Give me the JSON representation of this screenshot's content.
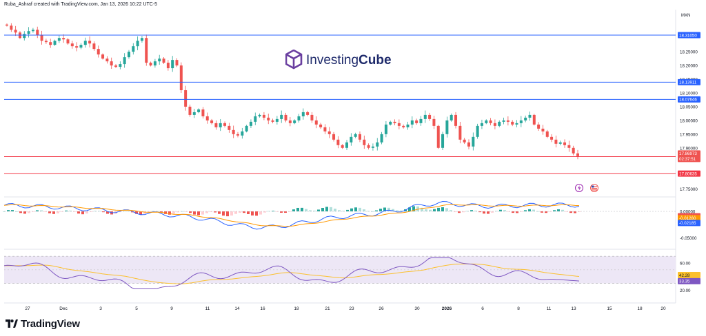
{
  "header": {
    "created_by": "Ruba_Ashraf created with TradingView.com, Jan 13, 2026 10:22 UTC-5"
  },
  "symbol_label": "MXN",
  "watermark": {
    "brand_left": "Investing",
    "brand_right": "Cube",
    "brand_color_left": "#1e2a6b",
    "brand_color_right": "#1e2a6b",
    "logo_color": "#6a3fa0"
  },
  "footer": {
    "tradingview": "TradingView"
  },
  "colors": {
    "up": "#26a69a",
    "down": "#ef5350",
    "blue_line": "#2962ff",
    "red_line": "#f23645",
    "macd": "#2962ff",
    "signal": "#ff9800",
    "rsi": "#7e57c2",
    "rsi_ma": "#fbc02d"
  },
  "chart_data": [
    {
      "type": "candlestick",
      "y_ticks": [
        "18.25000",
        "18.20000",
        "18.15000",
        "18.10000",
        "18.05000",
        "18.00000",
        "17.95000",
        "17.90000",
        "17.75000"
      ],
      "ylim": [
        17.72,
        18.36
      ],
      "x_ticks": [
        "27",
        "Dec",
        "3",
        "5",
        "9",
        "11",
        "14",
        "16",
        "18",
        "21",
        "23",
        "26",
        "30",
        "2026",
        "6",
        "8",
        "11",
        "13",
        "15",
        "18",
        "20"
      ],
      "close_path": [
        18.345,
        18.33,
        18.32,
        18.3,
        18.315,
        18.325,
        18.33,
        18.31,
        18.29,
        18.285,
        18.275,
        18.29,
        18.3,
        18.295,
        18.28,
        18.27,
        18.265,
        18.275,
        18.29,
        18.28,
        18.26,
        18.24,
        18.225,
        18.215,
        18.2,
        18.195,
        18.205,
        18.23,
        18.25,
        18.27,
        18.29,
        18.3,
        18.21,
        18.2,
        18.215,
        18.225,
        18.21,
        18.19,
        18.22,
        18.2,
        18.11,
        18.05,
        18.02,
        18.03,
        18.04,
        18.015,
        18.0,
        17.99,
        17.975,
        17.99,
        17.98,
        17.965,
        17.95,
        17.945,
        17.96,
        17.98,
        17.995,
        18.015,
        18.02,
        18.01,
        18.0,
        17.995,
        18.005,
        18.02,
        18.0,
        17.99,
        18.0,
        18.015,
        18.03,
        18.02,
        18.0,
        17.985,
        17.975,
        17.96,
        17.95,
        17.93,
        17.91,
        17.9,
        17.92,
        17.94,
        17.95,
        17.93,
        17.91,
        17.9,
        17.905,
        17.92,
        17.95,
        17.985,
        17.995,
        17.99,
        17.98,
        17.975,
        17.985,
        18.0,
        17.99,
        18.005,
        18.02,
        18.005,
        17.98,
        17.9,
        17.95,
        18.0,
        18.02,
        17.98,
        17.93,
        17.92,
        17.905,
        17.94,
        17.98,
        17.99,
        18.0,
        17.99,
        17.98,
        17.995,
        18.0,
        17.995,
        17.985,
        17.99,
        18.0,
        18.01,
        18.02,
        17.985,
        17.97,
        17.96,
        17.94,
        17.93,
        17.915,
        17.92,
        17.91,
        17.9,
        17.88,
        17.87
      ],
      "levels_blue": [
        {
          "label": "18.31050",
          "value": 18.3105
        },
        {
          "label": "18.13911",
          "value": 18.13911
        },
        {
          "label": "18.07646",
          "value": 18.07646
        }
      ],
      "levels_red": [
        {
          "label": "17.86814",
          "value": 17.86814
        },
        {
          "label": "17.80635",
          "value": 17.80635
        }
      ],
      "last_price": {
        "label": "17.86973",
        "countdown": "02:37:51",
        "value": 17.86973
      }
    },
    {
      "type": "macd",
      "y_ticks": [
        "0.00000",
        "-0.05000"
      ],
      "ylim": [
        -0.065,
        0.02
      ],
      "value_labels": [
        {
          "label": "-0.00906",
          "value": -0.00906,
          "color": "#ef5350"
        },
        {
          "label": "-0.01280",
          "value": -0.0128,
          "color": "#ff9800"
        },
        {
          "label": "-0.02185",
          "value": -0.02185,
          "color": "#2962ff"
        }
      ]
    },
    {
      "type": "rsi",
      "y_ticks": [
        "60.00",
        "20.00"
      ],
      "ylim": [
        15,
        78
      ],
      "bands": [
        30,
        70
      ],
      "value_labels": [
        {
          "label": "42.28",
          "value": 42.28,
          "color": "#fbc02d"
        },
        {
          "label": "33.35",
          "value": 33.35,
          "color": "#7e57c2"
        }
      ]
    }
  ]
}
